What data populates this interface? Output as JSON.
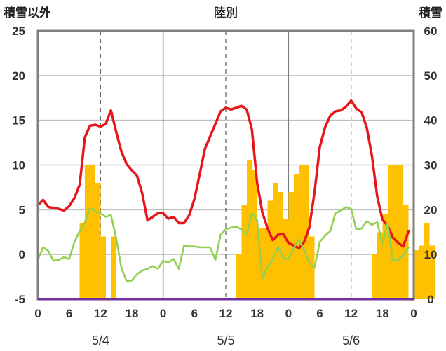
{
  "chart_data": {
    "type": "bar+line",
    "title": "陸別",
    "left_axis_label": "積雪以外",
    "right_axis_label": "積雪",
    "left_ylim": [
      -5,
      25
    ],
    "left_ticks": [
      "25",
      "20",
      "15",
      "10",
      "5",
      "0",
      "-5"
    ],
    "right_ylim": [
      0,
      60
    ],
    "right_ticks": [
      "60",
      "50",
      "40",
      "30",
      "20",
      "10",
      "0"
    ],
    "x_ticks": [
      "0",
      "6",
      "12",
      "18",
      "0",
      "6",
      "12",
      "18",
      "0",
      "6",
      "12",
      "18",
      "0"
    ],
    "day_labels": [
      "5/4",
      "5/5",
      "5/6"
    ],
    "colors": {
      "temperature": "#e8161b",
      "snowfall_bars": "#ffc000",
      "green_series": "#92d050",
      "baseline": "#7030a0",
      "frame": "#7f7f7f"
    },
    "series": [
      {
        "axis": "left",
        "kind": "line",
        "color_key": "temperature",
        "x": [
          0,
          1,
          2,
          3,
          4,
          5,
          6,
          7,
          8,
          9,
          10,
          11,
          12,
          13,
          14,
          15,
          16,
          17,
          18,
          19,
          20,
          21,
          22,
          23,
          24,
          25,
          26,
          27,
          28,
          29,
          30,
          31,
          32,
          33,
          34,
          35,
          36,
          37,
          38,
          39,
          40,
          41,
          42,
          43,
          44,
          45,
          46,
          47,
          48,
          49,
          50,
          51,
          52,
          53,
          54,
          55,
          56,
          57,
          58,
          59,
          60,
          61,
          62,
          63,
          64,
          65,
          66,
          67,
          68,
          69,
          70,
          71
        ],
        "y": [
          5.5,
          6.1,
          5.3,
          5.2,
          5.1,
          4.9,
          5.4,
          6.3,
          7.8,
          13.1,
          14.4,
          14.5,
          14.3,
          14.6,
          16.1,
          13.7,
          11.5,
          10.1,
          9.4,
          8.8,
          6.8,
          3.8,
          4.2,
          4.6,
          4.6,
          4.0,
          4.2,
          3.5,
          3.5,
          4.4,
          6.2,
          9.0,
          11.8,
          13.2,
          14.6,
          16.0,
          16.4,
          16.2,
          16.4,
          16.6,
          16.2,
          14.0,
          8.0,
          4.7,
          2.9,
          1.6,
          2.2,
          2.3,
          1.3,
          1.0,
          0.7,
          1.4,
          3.0,
          7.0,
          12.0,
          14.2,
          15.5,
          16.0,
          16.1,
          16.5,
          17.2,
          16.3,
          15.9,
          14.2,
          11.0,
          6.5,
          3.9,
          3.2,
          1.9,
          1.3,
          0.9,
          2.6
        ]
      },
      {
        "axis": "right",
        "kind": "bar",
        "color_key": "snowfall_bars",
        "bins": [
          [
            8,
            9,
            17
          ],
          [
            9,
            11,
            30
          ],
          [
            11,
            12,
            26
          ],
          [
            12,
            13,
            14
          ],
          [
            14,
            15,
            14
          ],
          [
            38,
            39,
            10
          ],
          [
            39,
            40,
            21
          ],
          [
            40,
            41,
            31
          ],
          [
            41,
            42,
            29
          ],
          [
            42,
            44,
            16
          ],
          [
            44,
            45,
            22
          ],
          [
            45,
            46,
            26
          ],
          [
            46,
            47,
            24
          ],
          [
            47,
            48,
            18
          ],
          [
            48,
            49,
            24
          ],
          [
            49,
            50,
            28
          ],
          [
            50,
            52,
            30
          ],
          [
            52,
            53,
            14
          ],
          [
            64,
            65,
            10
          ],
          [
            65,
            66,
            15
          ],
          [
            66,
            67,
            19
          ],
          [
            67,
            70,
            30
          ],
          [
            70,
            71,
            21
          ],
          [
            72,
            73,
            11
          ],
          [
            73,
            74,
            12
          ],
          [
            74,
            75,
            17
          ],
          [
            75,
            76,
            12
          ]
        ]
      },
      {
        "axis": "left",
        "kind": "line",
        "color_key": "green_series",
        "x": [
          0,
          1,
          2,
          3,
          4,
          5,
          6,
          7,
          8,
          9,
          10,
          11,
          12,
          13,
          14,
          15,
          16,
          17,
          18,
          19,
          20,
          21,
          22,
          23,
          24,
          25,
          26,
          27,
          28,
          29,
          30,
          31,
          32,
          33,
          34,
          35,
          36,
          37,
          38,
          39,
          40,
          41,
          42,
          43,
          44,
          45,
          46,
          47,
          48,
          49,
          50,
          51,
          52,
          53,
          54,
          55,
          56,
          57,
          58,
          59,
          60,
          61,
          62,
          63,
          64,
          65,
          66,
          67,
          68,
          69,
          70,
          71
        ],
        "y": [
          -0.6,
          0.8,
          0.4,
          -0.7,
          -0.6,
          -0.3,
          -0.5,
          1.4,
          2.6,
          3.6,
          5.2,
          4.8,
          4.6,
          4.2,
          4.4,
          1.8,
          -1.5,
          -3.0,
          -2.9,
          -2.2,
          -1.8,
          -1.6,
          -1.3,
          -1.6,
          -0.7,
          -0.9,
          -0.5,
          -1.6,
          1.0,
          0.9,
          0.9,
          0.8,
          0.8,
          0.8,
          -0.6,
          2.2,
          2.8,
          3.0,
          3.1,
          2.8,
          2.2,
          4.6,
          3.8,
          -2.7,
          -1.4,
          -0.6,
          0.9,
          -0.4,
          -0.5,
          0.7,
          1.7,
          0.5,
          -0.9,
          -1.5,
          1.4,
          2.1,
          2.6,
          4.6,
          4.9,
          5.3,
          5.1,
          2.8,
          2.9,
          3.7,
          3.3,
          3.6,
          1.2,
          3.5,
          -0.7,
          -0.6,
          -0.1,
          0.8
        ]
      }
    ]
  }
}
